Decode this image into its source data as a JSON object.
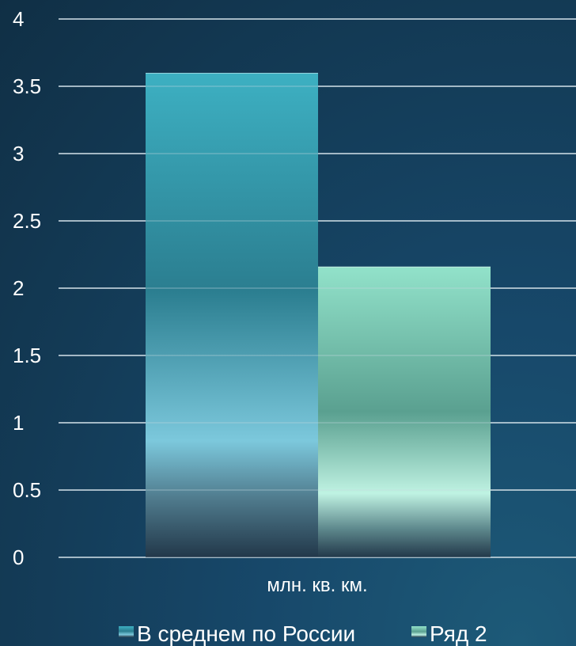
{
  "chart_data": {
    "type": "bar",
    "categories": [
      "млн. кв. км."
    ],
    "series": [
      {
        "name": "В среднем по России",
        "values": [
          3.6
        ],
        "color": "#3aa9bb"
      },
      {
        "name": "Ряд 2",
        "values": [
          2.16
        ],
        "color": "#8fe0c8"
      }
    ],
    "ylim": [
      0,
      4
    ],
    "yticks": [
      "0",
      "0.5",
      "1",
      "1.5",
      "2",
      "2.5",
      "3",
      "3.5",
      "4"
    ],
    "grid": true,
    "legend_position": "bottom",
    "text_color": "#ffffff",
    "grid_color": "#c9d9e2"
  }
}
